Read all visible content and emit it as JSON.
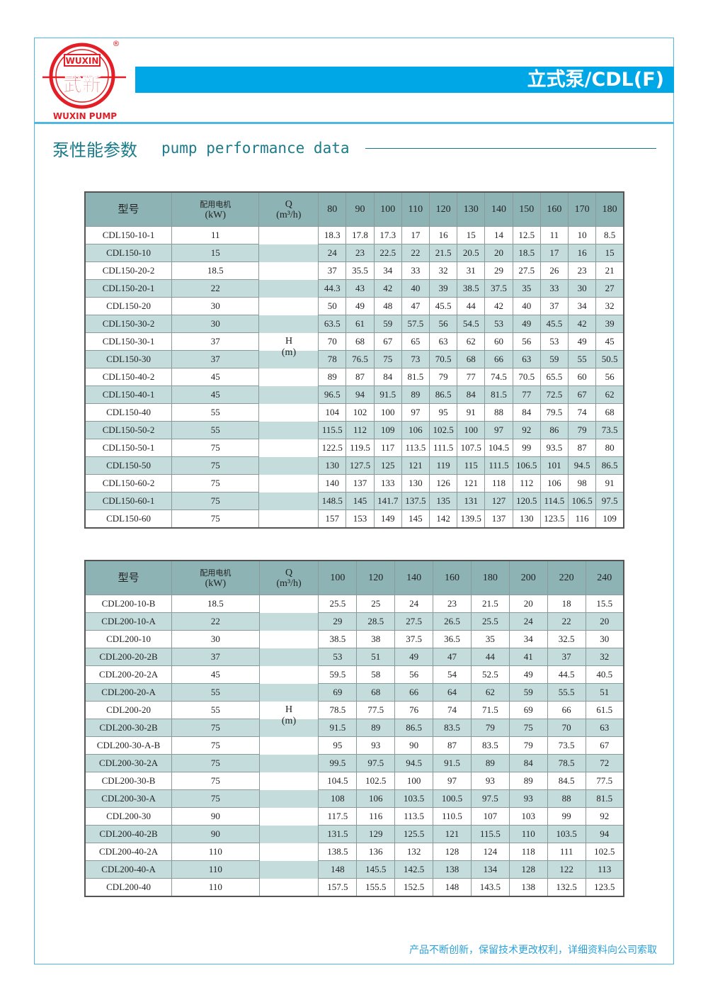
{
  "header": {
    "brand_top": "WUXIN",
    "brand_cn": "武新",
    "brand_bottom": "WUXIN PUMP",
    "registered": "®",
    "title": "立式泵/CDL(F)",
    "accent": "#00a7e6",
    "brand_color": "#e41e26"
  },
  "section": {
    "title_cn": "泵性能参数",
    "title_en": "pump performance data"
  },
  "col_labels": {
    "model": "型号",
    "motor_cn": "配用电机",
    "motor_unit": "(kW)",
    "q": "Q",
    "q_unit": "(m³/h)",
    "h": "H",
    "h_unit": "(m)"
  },
  "table1": {
    "flows": [
      "80",
      "90",
      "100",
      "110",
      "120",
      "130",
      "140",
      "150",
      "160",
      "170",
      "180"
    ],
    "rows": [
      {
        "model": "CDL150-10-1",
        "kw": "11",
        "h": [
          "18.3",
          "17.8",
          "17.3",
          "17",
          "16",
          "15",
          "14",
          "12.5",
          "11",
          "10",
          "8.5"
        ]
      },
      {
        "model": "CDL150-10",
        "kw": "15",
        "h": [
          "24",
          "23",
          "22.5",
          "22",
          "21.5",
          "20.5",
          "20",
          "18.5",
          "17",
          "16",
          "15"
        ]
      },
      {
        "model": "CDL150-20-2",
        "kw": "18.5",
        "h": [
          "37",
          "35.5",
          "34",
          "33",
          "32",
          "31",
          "29",
          "27.5",
          "26",
          "23",
          "21"
        ]
      },
      {
        "model": "CDL150-20-1",
        "kw": "22",
        "h": [
          "44.3",
          "43",
          "42",
          "40",
          "39",
          "38.5",
          "37.5",
          "35",
          "33",
          "30",
          "27"
        ]
      },
      {
        "model": "CDL150-20",
        "kw": "30",
        "h": [
          "50",
          "49",
          "48",
          "47",
          "45.5",
          "44",
          "42",
          "40",
          "37",
          "34",
          "32"
        ]
      },
      {
        "model": "CDL150-30-2",
        "kw": "30",
        "h": [
          "63.5",
          "61",
          "59",
          "57.5",
          "56",
          "54.5",
          "53",
          "49",
          "45.5",
          "42",
          "39"
        ]
      },
      {
        "model": "CDL150-30-1",
        "kw": "37",
        "h": [
          "70",
          "68",
          "67",
          "65",
          "63",
          "62",
          "60",
          "56",
          "53",
          "49",
          "45"
        ]
      },
      {
        "model": "CDL150-30",
        "kw": "37",
        "h": [
          "78",
          "76.5",
          "75",
          "73",
          "70.5",
          "68",
          "66",
          "63",
          "59",
          "55",
          "50.5"
        ]
      },
      {
        "model": "CDL150-40-2",
        "kw": "45",
        "h": [
          "89",
          "87",
          "84",
          "81.5",
          "79",
          "77",
          "74.5",
          "70.5",
          "65.5",
          "60",
          "56"
        ]
      },
      {
        "model": "CDL150-40-1",
        "kw": "45",
        "h": [
          "96.5",
          "94",
          "91.5",
          "89",
          "86.5",
          "84",
          "81.5",
          "77",
          "72.5",
          "67",
          "62"
        ]
      },
      {
        "model": "CDL150-40",
        "kw": "55",
        "h": [
          "104",
          "102",
          "100",
          "97",
          "95",
          "91",
          "88",
          "84",
          "79.5",
          "74",
          "68"
        ]
      },
      {
        "model": "CDL150-50-2",
        "kw": "55",
        "h": [
          "115.5",
          "112",
          "109",
          "106",
          "102.5",
          "100",
          "97",
          "92",
          "86",
          "79",
          "73.5"
        ]
      },
      {
        "model": "CDL150-50-1",
        "kw": "75",
        "h": [
          "122.5",
          "119.5",
          "117",
          "113.5",
          "111.5",
          "107.5",
          "104.5",
          "99",
          "93.5",
          "87",
          "80"
        ]
      },
      {
        "model": "CDL150-50",
        "kw": "75",
        "h": [
          "130",
          "127.5",
          "125",
          "121",
          "119",
          "115",
          "111.5",
          "106.5",
          "101",
          "94.5",
          "86.5"
        ]
      },
      {
        "model": "CDL150-60-2",
        "kw": "75",
        "h": [
          "140",
          "137",
          "133",
          "130",
          "126",
          "121",
          "118",
          "112",
          "106",
          "98",
          "91"
        ]
      },
      {
        "model": "CDL150-60-1",
        "kw": "75",
        "h": [
          "148.5",
          "145",
          "141.7",
          "137.5",
          "135",
          "131",
          "127",
          "120.5",
          "114.5",
          "106.5",
          "97.5"
        ]
      },
      {
        "model": "CDL150-60",
        "kw": "75",
        "h": [
          "157",
          "153",
          "149",
          "145",
          "142",
          "139.5",
          "137",
          "130",
          "123.5",
          "116",
          "109"
        ]
      }
    ]
  },
  "table2": {
    "flows": [
      "100",
      "120",
      "140",
      "160",
      "180",
      "200",
      "220",
      "240"
    ],
    "rows": [
      {
        "model": "CDL200-10-B",
        "kw": "18.5",
        "h": [
          "25.5",
          "25",
          "24",
          "23",
          "21.5",
          "20",
          "18",
          "15.5"
        ]
      },
      {
        "model": "CDL200-10-A",
        "kw": "22",
        "h": [
          "29",
          "28.5",
          "27.5",
          "26.5",
          "25.5",
          "24",
          "22",
          "20"
        ]
      },
      {
        "model": "CDL200-10",
        "kw": "30",
        "h": [
          "38.5",
          "38",
          "37.5",
          "36.5",
          "35",
          "34",
          "32.5",
          "30"
        ]
      },
      {
        "model": "CDL200-20-2B",
        "kw": "37",
        "h": [
          "53",
          "51",
          "49",
          "47",
          "44",
          "41",
          "37",
          "32"
        ]
      },
      {
        "model": "CDL200-20-2A",
        "kw": "45",
        "h": [
          "59.5",
          "58",
          "56",
          "54",
          "52.5",
          "49",
          "44.5",
          "40.5"
        ]
      },
      {
        "model": "CDL200-20-A",
        "kw": "55",
        "h": [
          "69",
          "68",
          "66",
          "64",
          "62",
          "59",
          "55.5",
          "51"
        ]
      },
      {
        "model": "CDL200-20",
        "kw": "55",
        "h": [
          "78.5",
          "77.5",
          "76",
          "74",
          "71.5",
          "69",
          "66",
          "61.5"
        ]
      },
      {
        "model": "CDL200-30-2B",
        "kw": "75",
        "h": [
          "91.5",
          "89",
          "86.5",
          "83.5",
          "79",
          "75",
          "70",
          "63"
        ]
      },
      {
        "model": "CDL200-30-A-B",
        "kw": "75",
        "h": [
          "95",
          "93",
          "90",
          "87",
          "83.5",
          "79",
          "73.5",
          "67"
        ]
      },
      {
        "model": "CDL200-30-2A",
        "kw": "75",
        "h": [
          "99.5",
          "97.5",
          "94.5",
          "91.5",
          "89",
          "84",
          "78.5",
          "72"
        ]
      },
      {
        "model": "CDL200-30-B",
        "kw": "75",
        "h": [
          "104.5",
          "102.5",
          "100",
          "97",
          "93",
          "89",
          "84.5",
          "77.5"
        ]
      },
      {
        "model": "CDL200-30-A",
        "kw": "75",
        "h": [
          "108",
          "106",
          "103.5",
          "100.5",
          "97.5",
          "93",
          "88",
          "81.5"
        ]
      },
      {
        "model": "CDL200-30",
        "kw": "90",
        "h": [
          "117.5",
          "116",
          "113.5",
          "110.5",
          "107",
          "103",
          "99",
          "92"
        ]
      },
      {
        "model": "CDL200-40-2B",
        "kw": "90",
        "h": [
          "131.5",
          "129",
          "125.5",
          "121",
          "115.5",
          "110",
          "103.5",
          "94"
        ]
      },
      {
        "model": "CDL200-40-2A",
        "kw": "110",
        "h": [
          "138.5",
          "136",
          "132",
          "128",
          "124",
          "118",
          "111",
          "102.5"
        ]
      },
      {
        "model": "CDL200-40-A",
        "kw": "110",
        "h": [
          "148",
          "145.5",
          "142.5",
          "138",
          "134",
          "128",
          "122",
          "113"
        ]
      },
      {
        "model": "CDL200-40",
        "kw": "110",
        "h": [
          "157.5",
          "155.5",
          "152.5",
          "148",
          "143.5",
          "138",
          "132.5",
          "123.5"
        ]
      }
    ]
  },
  "footer": {
    "note": "产品不断创新，保留技术更改权利，详细资料向公司索取"
  }
}
